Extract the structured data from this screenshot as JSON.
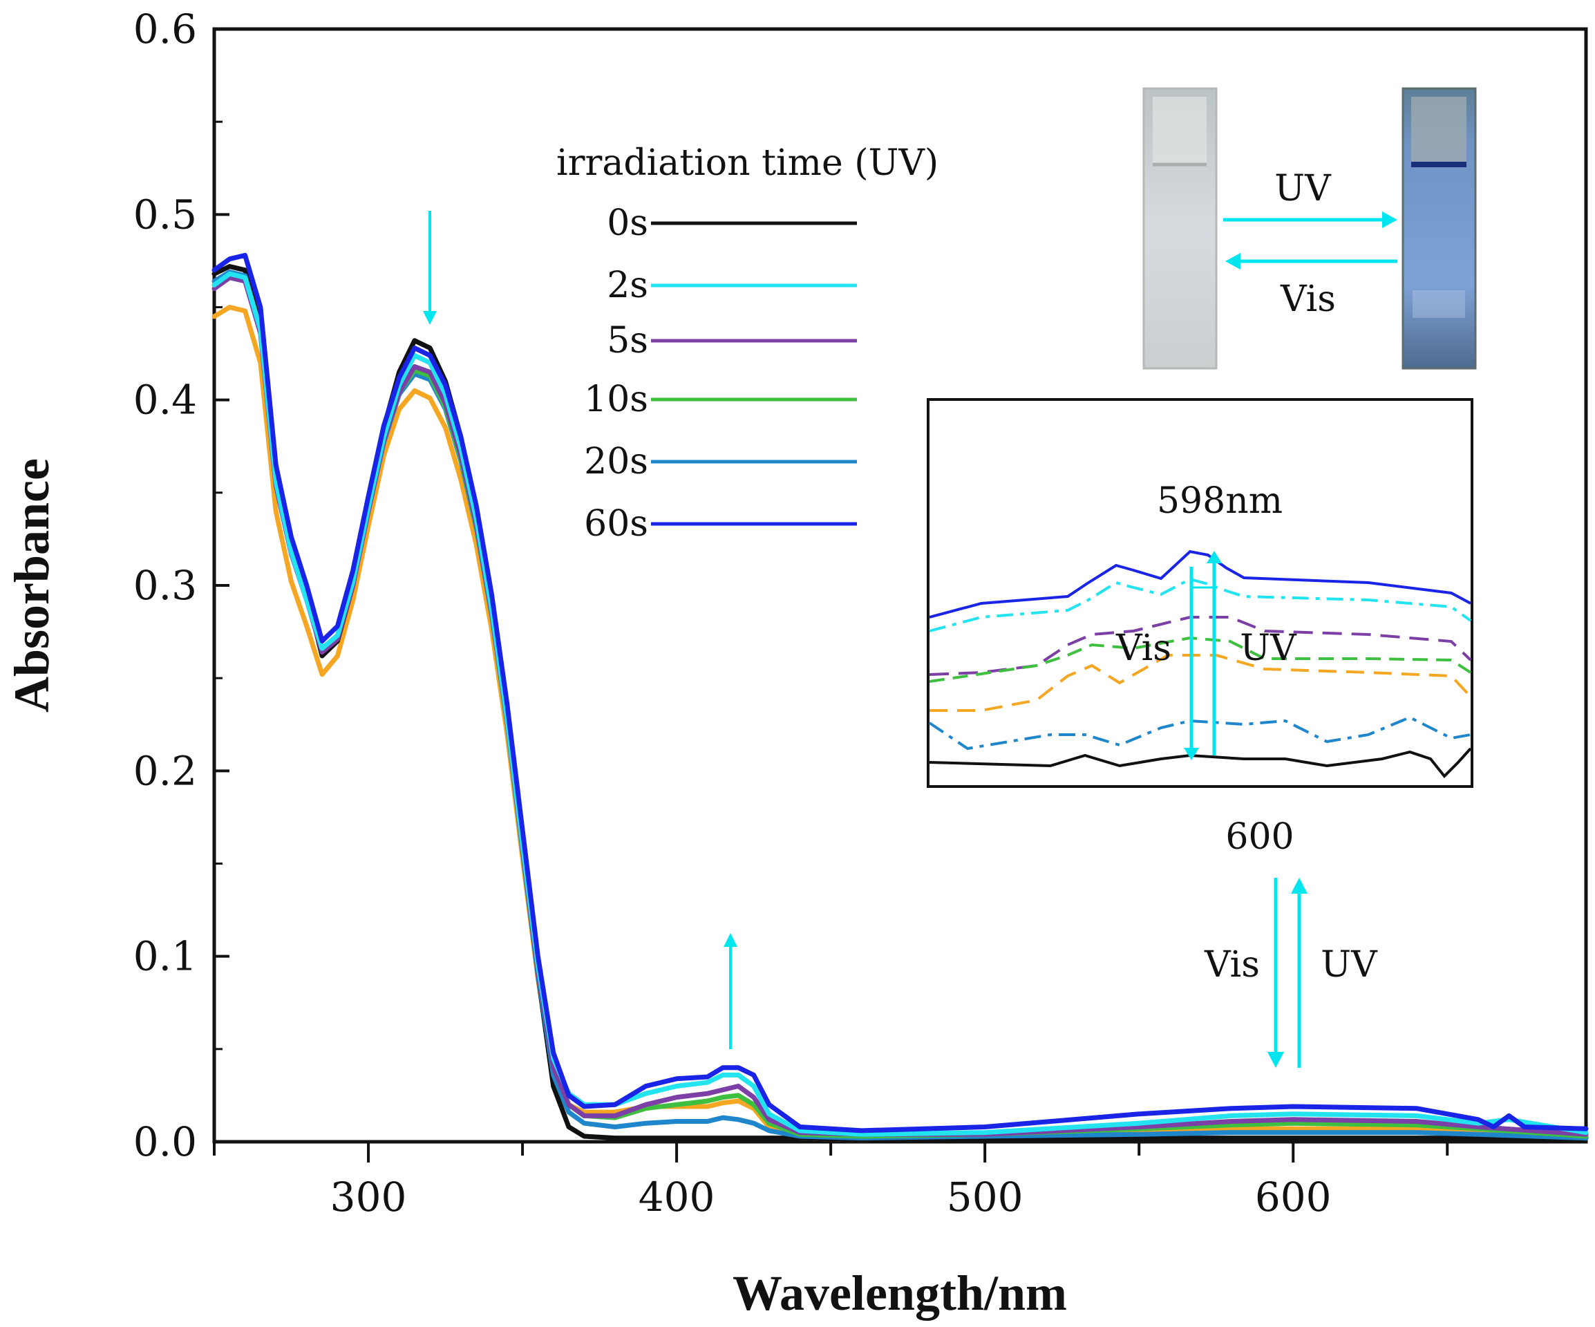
{
  "chart_data": {
    "type": "line",
    "xlabel": "Wavelength/nm",
    "ylabel": "Absorbance",
    "xlim": [
      250,
      695
    ],
    "ylim": [
      0,
      0.6
    ],
    "x_ticks": [
      300,
      400,
      500,
      600
    ],
    "x_tick_labels": [
      "300",
      "400",
      "500",
      "600"
    ],
    "y_ticks": [
      0,
      0.1,
      0.2,
      0.3,
      0.4,
      0.5,
      0.6
    ],
    "y_tick_labels": [
      "0.0",
      "0.1",
      "0.2",
      "0.3",
      "0.4",
      "0.5",
      "0.6"
    ],
    "grid": false,
    "legend_title": "irradiation time (UV)",
    "legend_position": "top-center",
    "series": [
      {
        "name": "0s",
        "color": "#111111",
        "values": [
          [
            250,
            0.468
          ],
          [
            255,
            0.472
          ],
          [
            260,
            0.47
          ],
          [
            265,
            0.44
          ],
          [
            270,
            0.36
          ],
          [
            275,
            0.32
          ],
          [
            280,
            0.295
          ],
          [
            285,
            0.262
          ],
          [
            290,
            0.27
          ],
          [
            295,
            0.3
          ],
          [
            300,
            0.345
          ],
          [
            305,
            0.385
          ],
          [
            310,
            0.415
          ],
          [
            315,
            0.432
          ],
          [
            320,
            0.428
          ],
          [
            325,
            0.41
          ],
          [
            330,
            0.38
          ],
          [
            335,
            0.34
          ],
          [
            340,
            0.29
          ],
          [
            345,
            0.23
          ],
          [
            350,
            0.16
          ],
          [
            355,
            0.09
          ],
          [
            360,
            0.03
          ],
          [
            365,
            0.008
          ],
          [
            370,
            0.003
          ],
          [
            380,
            0.002
          ],
          [
            400,
            0.002
          ],
          [
            420,
            0.002
          ],
          [
            440,
            0.002
          ],
          [
            460,
            0.001
          ],
          [
            500,
            0.001
          ],
          [
            550,
            0.002
          ],
          [
            600,
            0.002
          ],
          [
            650,
            0.002
          ],
          [
            695,
            0.002
          ]
        ]
      },
      {
        "name": "2s",
        "color": "#22e3ef",
        "values": [
          [
            250,
            0.462
          ],
          [
            255,
            0.468
          ],
          [
            260,
            0.466
          ],
          [
            265,
            0.438
          ],
          [
            270,
            0.356
          ],
          [
            275,
            0.318
          ],
          [
            280,
            0.292
          ],
          [
            285,
            0.266
          ],
          [
            290,
            0.273
          ],
          [
            295,
            0.302
          ],
          [
            300,
            0.342
          ],
          [
            305,
            0.38
          ],
          [
            310,
            0.408
          ],
          [
            315,
            0.424
          ],
          [
            320,
            0.42
          ],
          [
            325,
            0.403
          ],
          [
            330,
            0.374
          ],
          [
            335,
            0.336
          ],
          [
            340,
            0.287
          ],
          [
            345,
            0.228
          ],
          [
            350,
            0.16
          ],
          [
            355,
            0.095
          ],
          [
            360,
            0.045
          ],
          [
            365,
            0.026
          ],
          [
            370,
            0.02
          ],
          [
            380,
            0.02
          ],
          [
            390,
            0.026
          ],
          [
            400,
            0.03
          ],
          [
            410,
            0.032
          ],
          [
            415,
            0.036
          ],
          [
            420,
            0.036
          ],
          [
            425,
            0.03
          ],
          [
            430,
            0.015
          ],
          [
            440,
            0.006
          ],
          [
            460,
            0.004
          ],
          [
            500,
            0.005
          ],
          [
            550,
            0.01
          ],
          [
            580,
            0.014
          ],
          [
            600,
            0.015
          ],
          [
            640,
            0.014
          ],
          [
            660,
            0.01
          ],
          [
            670,
            0.012
          ],
          [
            695,
            0.005
          ]
        ]
      },
      {
        "name": "5s",
        "color": "#7b3fa6",
        "values": [
          [
            250,
            0.46
          ],
          [
            255,
            0.466
          ],
          [
            260,
            0.464
          ],
          [
            265,
            0.436
          ],
          [
            270,
            0.354
          ],
          [
            275,
            0.317
          ],
          [
            280,
            0.292
          ],
          [
            285,
            0.264
          ],
          [
            290,
            0.271
          ],
          [
            295,
            0.3
          ],
          [
            300,
            0.34
          ],
          [
            305,
            0.378
          ],
          [
            310,
            0.404
          ],
          [
            315,
            0.418
          ],
          [
            320,
            0.415
          ],
          [
            325,
            0.398
          ],
          [
            330,
            0.37
          ],
          [
            335,
            0.333
          ],
          [
            340,
            0.285
          ],
          [
            345,
            0.227
          ],
          [
            350,
            0.158
          ],
          [
            355,
            0.092
          ],
          [
            360,
            0.04
          ],
          [
            365,
            0.02
          ],
          [
            370,
            0.014
          ],
          [
            380,
            0.014
          ],
          [
            390,
            0.02
          ],
          [
            400,
            0.024
          ],
          [
            410,
            0.026
          ],
          [
            415,
            0.028
          ],
          [
            420,
            0.03
          ],
          [
            425,
            0.024
          ],
          [
            430,
            0.012
          ],
          [
            440,
            0.005
          ],
          [
            460,
            0.004
          ],
          [
            500,
            0.004
          ],
          [
            550,
            0.008
          ],
          [
            580,
            0.011
          ],
          [
            600,
            0.012
          ],
          [
            640,
            0.011
          ],
          [
            660,
            0.008
          ],
          [
            695,
            0.004
          ]
        ]
      },
      {
        "name": "10s",
        "color": "#3fbf3f",
        "values": [
          [
            250,
            0.462
          ],
          [
            255,
            0.467
          ],
          [
            260,
            0.465
          ],
          [
            265,
            0.437
          ],
          [
            270,
            0.355
          ],
          [
            275,
            0.318
          ],
          [
            280,
            0.293
          ],
          [
            285,
            0.265
          ],
          [
            290,
            0.272
          ],
          [
            295,
            0.301
          ],
          [
            300,
            0.341
          ],
          [
            305,
            0.378
          ],
          [
            310,
            0.404
          ],
          [
            315,
            0.416
          ],
          [
            320,
            0.413
          ],
          [
            325,
            0.396
          ],
          [
            330,
            0.368
          ],
          [
            335,
            0.332
          ],
          [
            340,
            0.285
          ],
          [
            345,
            0.227
          ],
          [
            350,
            0.158
          ],
          [
            355,
            0.092
          ],
          [
            360,
            0.04
          ],
          [
            365,
            0.02
          ],
          [
            370,
            0.014
          ],
          [
            380,
            0.013
          ],
          [
            390,
            0.018
          ],
          [
            400,
            0.02
          ],
          [
            410,
            0.022
          ],
          [
            415,
            0.024
          ],
          [
            420,
            0.025
          ],
          [
            425,
            0.02
          ],
          [
            430,
            0.01
          ],
          [
            440,
            0.004
          ],
          [
            460,
            0.003
          ],
          [
            500,
            0.004
          ],
          [
            550,
            0.007
          ],
          [
            580,
            0.009
          ],
          [
            600,
            0.01
          ],
          [
            640,
            0.009
          ],
          [
            660,
            0.007
          ],
          [
            695,
            0.003
          ]
        ]
      },
      {
        "name": "20s",
        "color": "#1f86cc",
        "values": [
          [
            250,
            0.464
          ],
          [
            255,
            0.469
          ],
          [
            260,
            0.467
          ],
          [
            265,
            0.438
          ],
          [
            270,
            0.356
          ],
          [
            275,
            0.319
          ],
          [
            280,
            0.294
          ],
          [
            285,
            0.266
          ],
          [
            290,
            0.273
          ],
          [
            295,
            0.301
          ],
          [
            300,
            0.34
          ],
          [
            305,
            0.377
          ],
          [
            310,
            0.403
          ],
          [
            315,
            0.414
          ],
          [
            320,
            0.411
          ],
          [
            325,
            0.395
          ],
          [
            330,
            0.367
          ],
          [
            335,
            0.331
          ],
          [
            340,
            0.284
          ],
          [
            345,
            0.226
          ],
          [
            350,
            0.157
          ],
          [
            355,
            0.09
          ],
          [
            360,
            0.036
          ],
          [
            365,
            0.016
          ],
          [
            370,
            0.01
          ],
          [
            380,
            0.008
          ],
          [
            390,
            0.01
          ],
          [
            400,
            0.011
          ],
          [
            410,
            0.011
          ],
          [
            415,
            0.013
          ],
          [
            420,
            0.012
          ],
          [
            425,
            0.01
          ],
          [
            430,
            0.006
          ],
          [
            440,
            0.003
          ],
          [
            460,
            0.002
          ],
          [
            500,
            0.003
          ],
          [
            550,
            0.004
          ],
          [
            580,
            0.005
          ],
          [
            600,
            0.005
          ],
          [
            640,
            0.005
          ],
          [
            660,
            0.004
          ],
          [
            695,
            0.002
          ]
        ]
      },
      {
        "name": "60s",
        "color": "#1a24e6",
        "values": [
          [
            250,
            0.47
          ],
          [
            255,
            0.476
          ],
          [
            260,
            0.478
          ],
          [
            265,
            0.45
          ],
          [
            270,
            0.365
          ],
          [
            275,
            0.326
          ],
          [
            280,
            0.3
          ],
          [
            285,
            0.27
          ],
          [
            290,
            0.278
          ],
          [
            295,
            0.308
          ],
          [
            300,
            0.348
          ],
          [
            305,
            0.386
          ],
          [
            310,
            0.412
          ],
          [
            315,
            0.428
          ],
          [
            320,
            0.424
          ],
          [
            325,
            0.408
          ],
          [
            330,
            0.38
          ],
          [
            335,
            0.343
          ],
          [
            340,
            0.295
          ],
          [
            345,
            0.236
          ],
          [
            350,
            0.168
          ],
          [
            355,
            0.1
          ],
          [
            360,
            0.048
          ],
          [
            365,
            0.025
          ],
          [
            370,
            0.019
          ],
          [
            380,
            0.02
          ],
          [
            390,
            0.03
          ],
          [
            400,
            0.034
          ],
          [
            410,
            0.035
          ],
          [
            415,
            0.04
          ],
          [
            420,
            0.04
          ],
          [
            425,
            0.036
          ],
          [
            430,
            0.02
          ],
          [
            440,
            0.008
          ],
          [
            460,
            0.006
          ],
          [
            500,
            0.008
          ],
          [
            550,
            0.015
          ],
          [
            580,
            0.018
          ],
          [
            600,
            0.019
          ],
          [
            640,
            0.018
          ],
          [
            660,
            0.012
          ],
          [
            665,
            0.008
          ],
          [
            670,
            0.014
          ],
          [
            675,
            0.008
          ],
          [
            695,
            0.007
          ]
        ]
      },
      {
        "name": "",
        "color": "#f5a623",
        "values": [
          [
            250,
            0.445
          ],
          [
            255,
            0.45
          ],
          [
            260,
            0.448
          ],
          [
            265,
            0.42
          ],
          [
            270,
            0.34
          ],
          [
            275,
            0.302
          ],
          [
            280,
            0.278
          ],
          [
            285,
            0.252
          ],
          [
            290,
            0.262
          ],
          [
            295,
            0.292
          ],
          [
            300,
            0.332
          ],
          [
            305,
            0.37
          ],
          [
            310,
            0.395
          ],
          [
            315,
            0.405
          ],
          [
            320,
            0.401
          ],
          [
            325,
            0.385
          ],
          [
            330,
            0.357
          ],
          [
            335,
            0.322
          ],
          [
            340,
            0.276
          ],
          [
            345,
            0.22
          ],
          [
            350,
            0.153
          ],
          [
            355,
            0.088
          ],
          [
            360,
            0.036
          ],
          [
            365,
            0.02
          ],
          [
            370,
            0.016
          ],
          [
            380,
            0.016
          ],
          [
            390,
            0.019
          ],
          [
            400,
            0.019
          ],
          [
            410,
            0.019
          ],
          [
            415,
            0.021
          ],
          [
            420,
            0.022
          ],
          [
            425,
            0.018
          ],
          [
            430,
            0.008
          ],
          [
            440,
            0.002
          ],
          [
            460,
            0.001
          ],
          [
            500,
            0.002
          ],
          [
            550,
            0.005
          ],
          [
            580,
            0.007
          ],
          [
            600,
            0.007
          ],
          [
            640,
            0.007
          ],
          [
            660,
            0.005
          ],
          [
            695,
            0.002
          ]
        ]
      }
    ],
    "annotations": {
      "arrow_down_label": "",
      "photo_arrow_uv": "UV",
      "photo_arrow_vis": "Vis",
      "inset_peak_label": "598nm",
      "inset_vis": "Vis",
      "inset_uv": "UV",
      "inset_x_label": "600",
      "main_vis": "Vis",
      "main_uv": "UV"
    },
    "colors": {
      "arrow": "#00e5ee",
      "axis": "#111111"
    }
  }
}
